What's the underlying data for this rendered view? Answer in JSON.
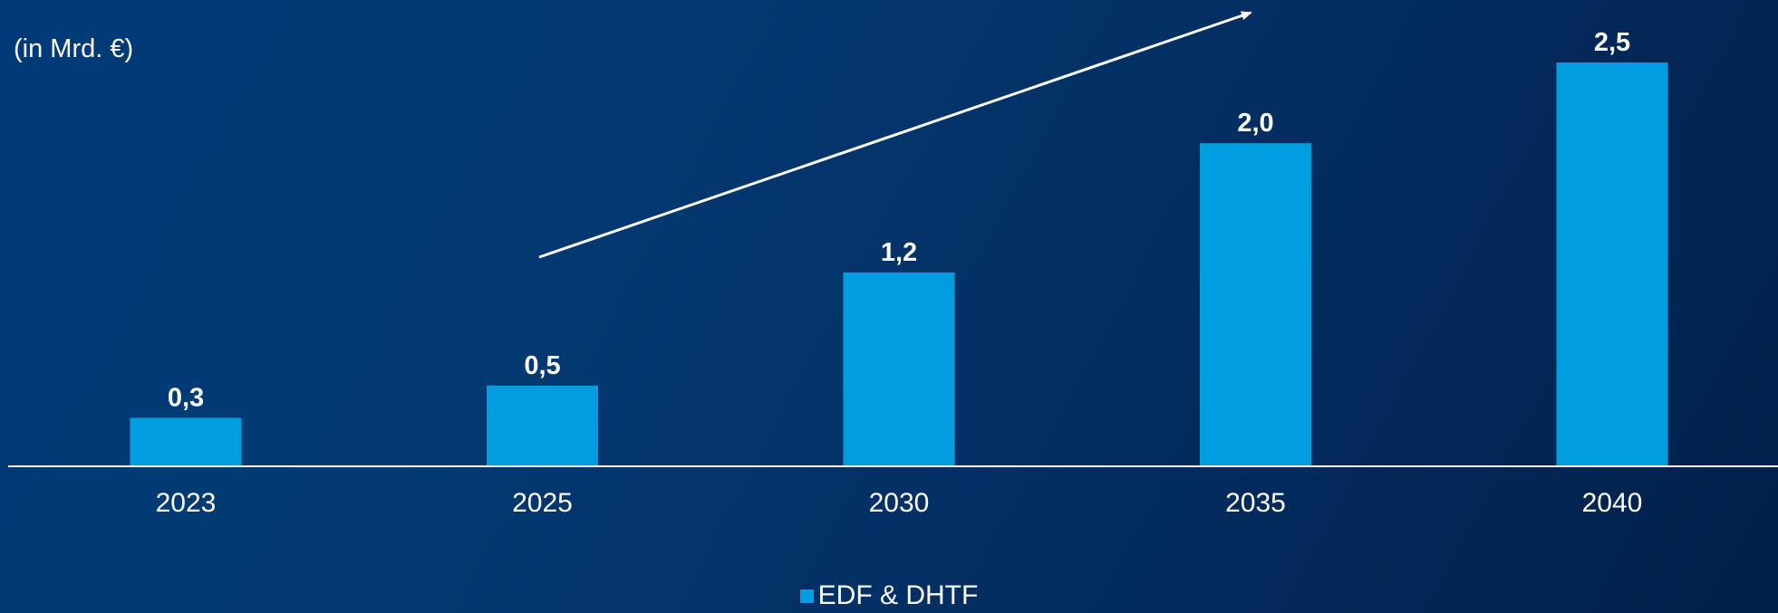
{
  "chart_data": {
    "type": "bar",
    "unit_label": "(in Mrd. €)",
    "categories": [
      "2023",
      "2025",
      "2030",
      "2035",
      "2040"
    ],
    "series": [
      {
        "name": "EDF & DHTF",
        "values": [
          0.3,
          0.5,
          1.2,
          2.0,
          2.5
        ],
        "value_labels": [
          "0,3",
          "0,5",
          "1,2",
          "2,0",
          "2,5"
        ]
      }
    ],
    "ylim": [
      0,
      2.5
    ],
    "grid": false,
    "legend_placement": "bottom-center",
    "trend_arrow": true
  },
  "colors": {
    "bar": "#009ee0",
    "axis": "#ffffff",
    "text": "#ffffff",
    "background_start": "#003a78",
    "background_end": "#01204a"
  }
}
